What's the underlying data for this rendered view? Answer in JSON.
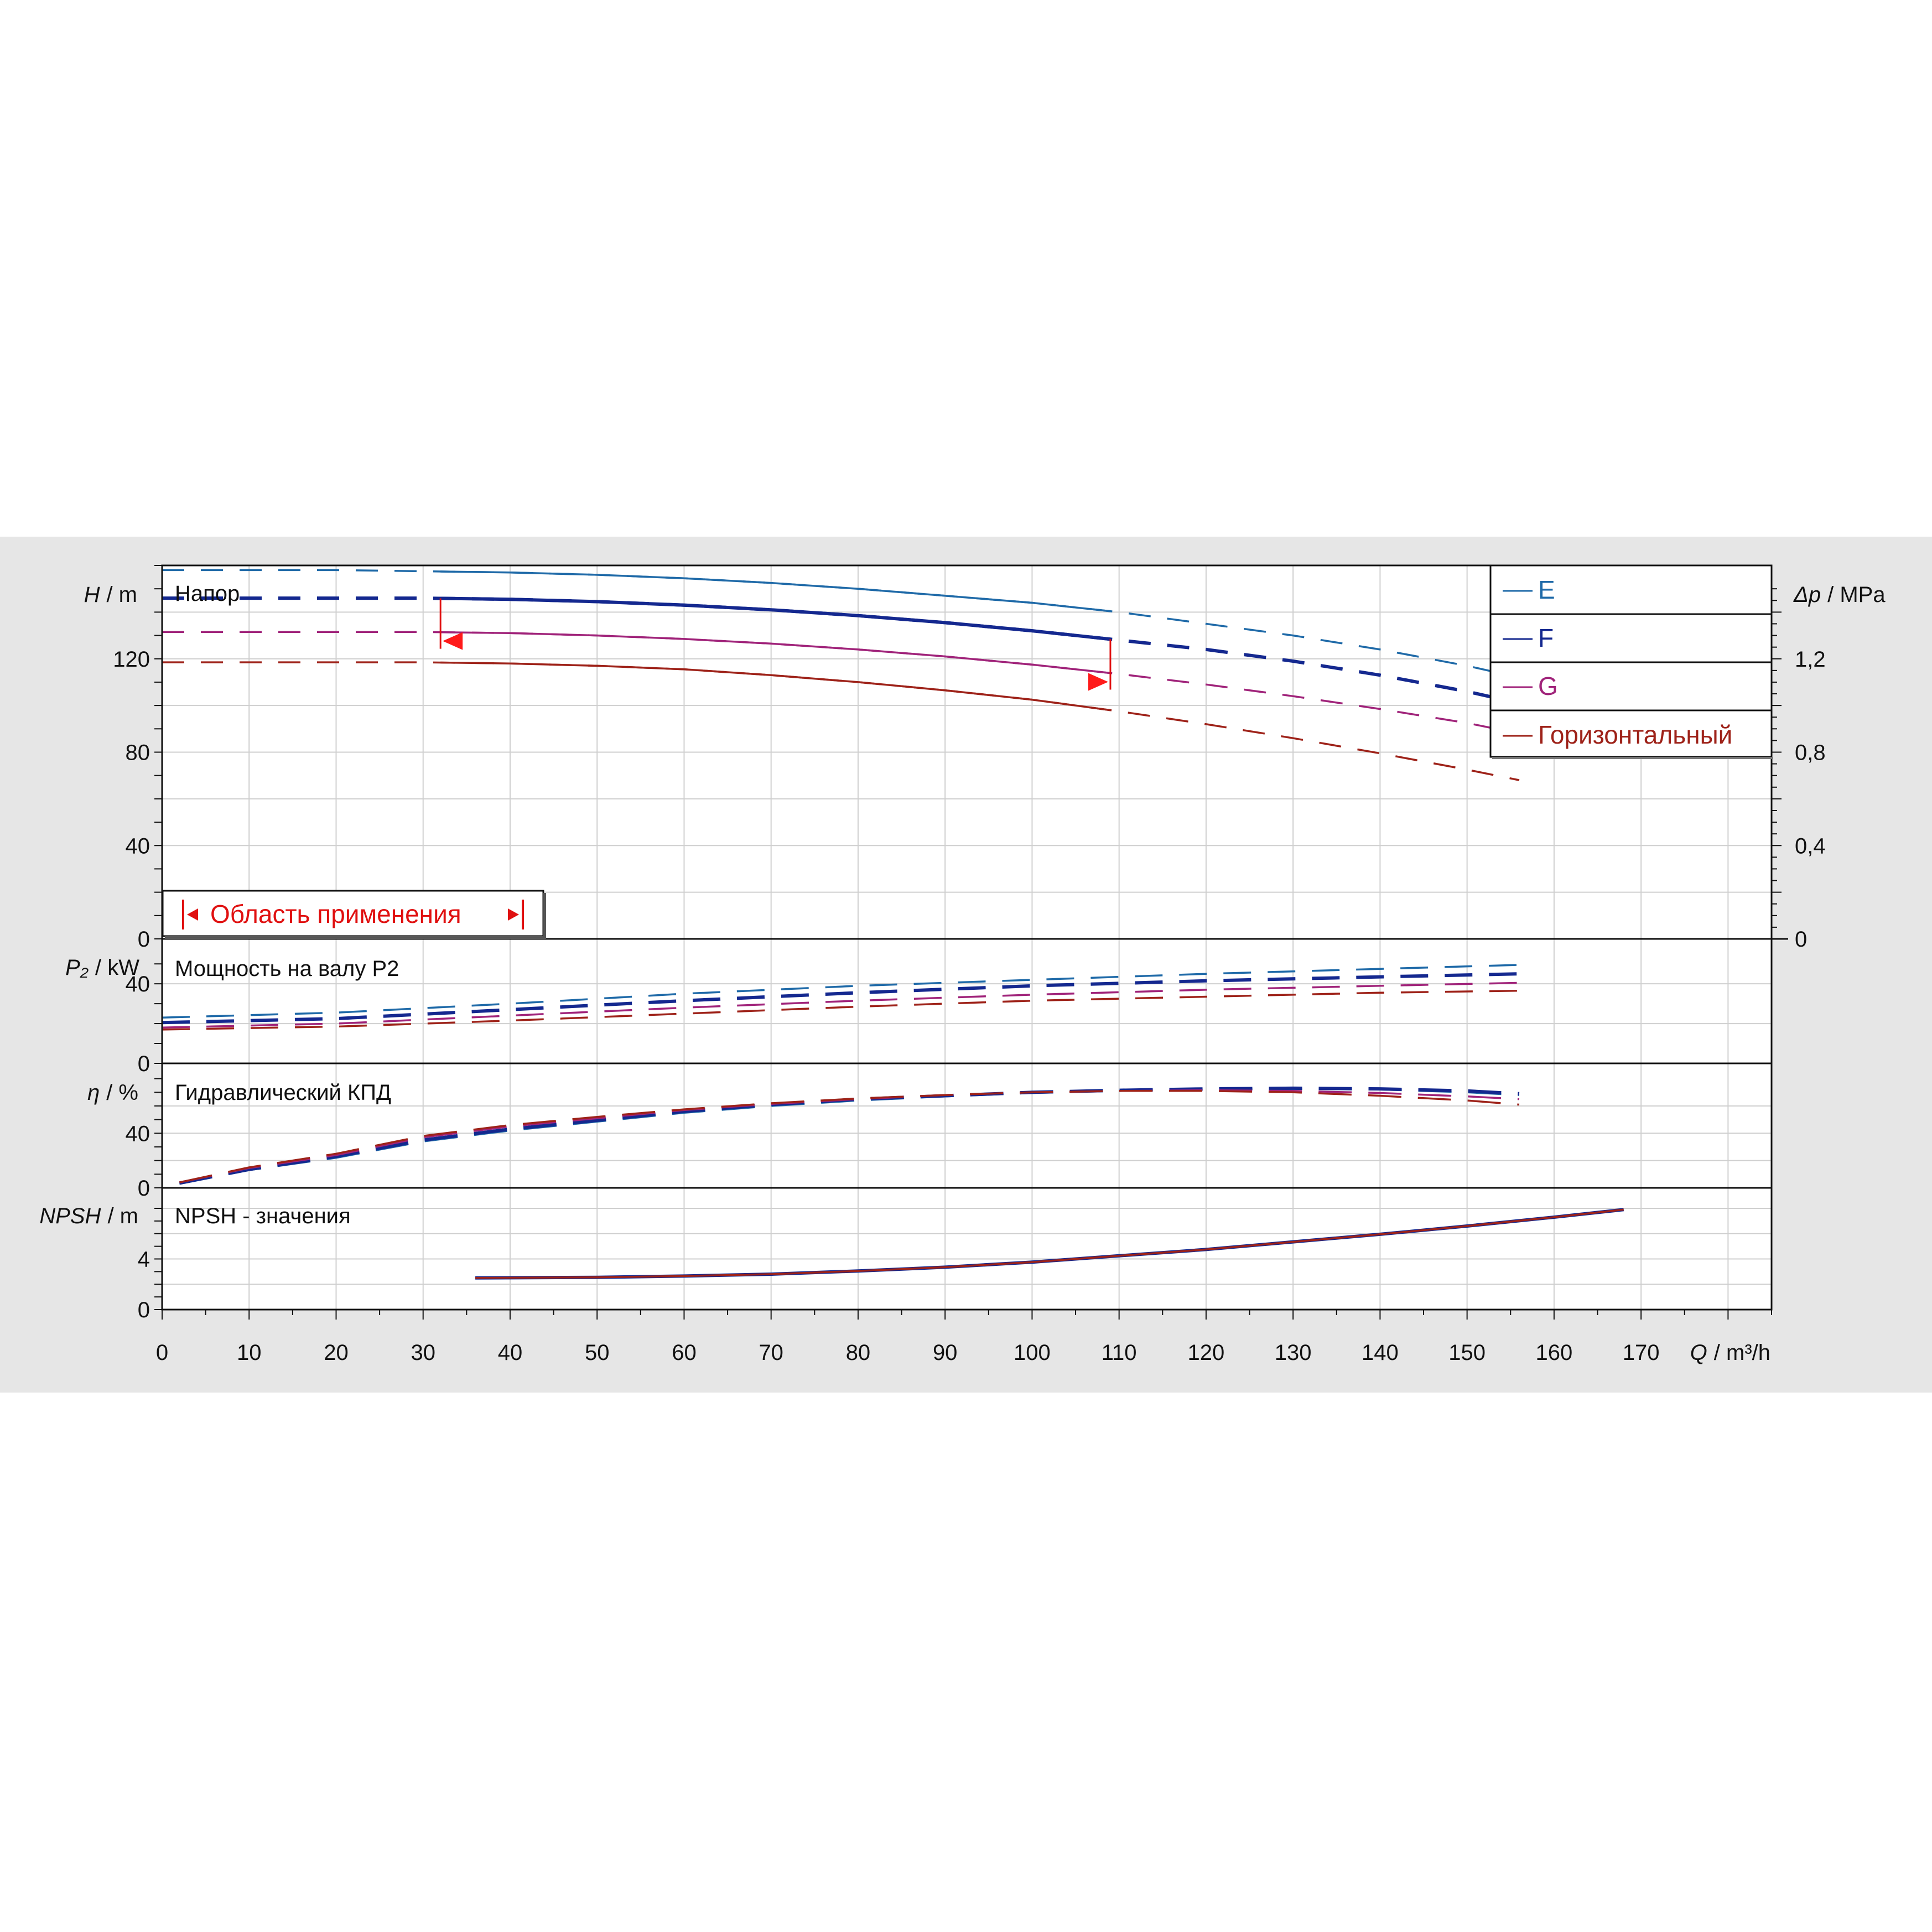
{
  "chart_data": {
    "type": "line",
    "x_axis": {
      "label_symbol": "Q",
      "label_unit": "/ m³/h",
      "range": [
        0,
        185
      ],
      "ticks": [
        "0",
        "10",
        "20",
        "30",
        "40",
        "50",
        "60",
        "70",
        "80",
        "90",
        "100",
        "110",
        "120",
        "130",
        "140",
        "150",
        "160",
        "170"
      ]
    },
    "legend": {
      "placement": "top-right",
      "entries": [
        {
          "name": "E",
          "color": "#1f6aa8"
        },
        {
          "name": "F",
          "color": "#14288f"
        },
        {
          "name": "G",
          "color": "#a0237a"
        },
        {
          "name": "Горизонтальный",
          "color": "#9e2219"
        }
      ]
    },
    "panels": [
      {
        "id": "head",
        "title": "Напор",
        "y_symbol": "H",
        "y_unit": "/ m",
        "y_range": [
          0,
          160
        ],
        "y_ticks": [
          "0",
          "40",
          "80",
          "120"
        ],
        "y2_symbol": "Δp",
        "y2_unit": "/ MPa",
        "y2_ticks": [
          "0",
          "0,4",
          "0,8",
          "1,2"
        ],
        "series": [
          {
            "name": "E",
            "x": [
              0,
              10,
              20,
              30,
              40,
              50,
              60,
              70,
              80,
              90,
              100,
              110,
              120,
              130,
              140,
              150,
              156
            ],
            "y": [
              158,
              158,
              158,
              157.5,
              157,
              156,
              154.5,
              152.5,
              150,
              147,
              144,
              140,
              135,
              130,
              124,
              117,
              112
            ]
          },
          {
            "name": "F",
            "x": [
              0,
              10,
              20,
              30,
              40,
              50,
              60,
              70,
              80,
              90,
              100,
              110,
              120,
              130,
              140,
              150,
              156
            ],
            "y": [
              146,
              146,
              146,
              146,
              145.5,
              144.5,
              143,
              141,
              138.5,
              135.5,
              132,
              128,
              124,
              119,
              113,
              106,
              101
            ]
          },
          {
            "name": "G",
            "x": [
              0,
              10,
              20,
              30,
              40,
              50,
              60,
              70,
              80,
              90,
              100,
              110,
              120,
              130,
              140,
              150,
              156
            ],
            "y": [
              131.5,
              131.5,
              131.5,
              131.5,
              131,
              130,
              128.5,
              126.5,
              124,
              121,
              117.5,
              113.5,
              109,
              104,
              98.5,
              92.5,
              88
            ]
          },
          {
            "name": "Горизонтальный",
            "x": [
              0,
              10,
              20,
              30,
              40,
              50,
              60,
              70,
              80,
              90,
              100,
              110,
              120,
              130,
              140,
              150,
              156
            ],
            "y": [
              118.5,
              118.5,
              118.5,
              118.5,
              118,
              117,
              115.5,
              113,
              110,
              106.5,
              102.5,
              97.5,
              92,
              86,
              79.5,
              72.5,
              68
            ]
          }
        ],
        "operating_range": {
          "label": "Область применения",
          "q_min": 32,
          "q_max": 109
        }
      },
      {
        "id": "power",
        "title": "Мощность на валу P2",
        "y_symbol": "P₂",
        "y_unit": "/ kW",
        "y_range": [
          0,
          58
        ],
        "y_ticks": [
          "0",
          "40"
        ],
        "series": [
          {
            "name": "E",
            "x": [
              0,
              20,
              40,
              60,
              80,
              100,
              120,
              140,
              156
            ],
            "y": [
              23,
              25.5,
              30,
              35,
              39,
              42,
              45,
              47.5,
              49.5
            ]
          },
          {
            "name": "F",
            "x": [
              0,
              20,
              40,
              60,
              80,
              100,
              120,
              140,
              156
            ],
            "y": [
              20.5,
              22.5,
              27,
              31.5,
              35.5,
              39,
              41.5,
              43.5,
              45
            ]
          },
          {
            "name": "G",
            "x": [
              0,
              20,
              40,
              60,
              80,
              100,
              120,
              140,
              156
            ],
            "y": [
              18,
              20,
              24,
              28,
              31.5,
              34.5,
              37,
              39,
              40.5
            ]
          },
          {
            "name": "Горизонтальный",
            "x": [
              0,
              20,
              40,
              60,
              80,
              100,
              120,
              140,
              156
            ],
            "y": [
              17,
              18.5,
              21.5,
              25,
              28.5,
              31.5,
              33.5,
              35.5,
              36.5
            ]
          }
        ]
      },
      {
        "id": "efficiency",
        "title": "Гидравлический КПД",
        "y_symbol": "η",
        "y_unit": "/ %",
        "y_range": [
          0,
          80
        ],
        "y_ticks": [
          "0",
          "40"
        ],
        "series": [
          {
            "name": "E",
            "x": [
              2,
              10,
              20,
              30,
              40,
              50,
              60,
              70,
              80,
              90,
              100,
              110,
              120,
              130,
              140,
              150,
              156
            ],
            "y": [
              3,
              13,
              22,
              34,
              42,
              48.5,
              55,
              60,
              64,
              67,
              69.5,
              71,
              72,
              72.5,
              72,
              70,
              68
            ]
          },
          {
            "name": "F",
            "x": [
              2,
              10,
              20,
              30,
              40,
              50,
              60,
              70,
              80,
              90,
              100,
              110,
              120,
              130,
              140,
              150,
              156
            ],
            "y": [
              3.5,
              13.5,
              23,
              35,
              43,
              49.5,
              56,
              61,
              65,
              67.5,
              70,
              71.5,
              72.5,
              73,
              72.5,
              71,
              69
            ]
          },
          {
            "name": "G",
            "x": [
              2,
              10,
              20,
              30,
              40,
              50,
              60,
              70,
              80,
              90,
              100,
              110,
              120,
              130,
              140,
              150,
              156
            ],
            "y": [
              4,
              14.5,
              24,
              37,
              45,
              51,
              57,
              61.5,
              65,
              68,
              70,
              71,
              71.5,
              71,
              69.5,
              67,
              65
            ]
          },
          {
            "name": "Горизонтальный",
            "x": [
              2,
              10,
              20,
              30,
              40,
              50,
              60,
              70,
              80,
              90,
              100,
              110,
              120,
              130,
              140,
              150,
              156
            ],
            "y": [
              4,
              15,
              25,
              38,
              46,
              52,
              57.5,
              62,
              65.5,
              68,
              70,
              71,
              71,
              70,
              67.5,
              64,
              61
            ]
          }
        ]
      },
      {
        "id": "npsh",
        "title": "NPSH - значения",
        "y_symbol": "NPSH",
        "y_unit": "/ m",
        "y_range": [
          0,
          8
        ],
        "y_ticks": [
          "0",
          "4"
        ],
        "series": [
          {
            "name": "F",
            "x": [
              36,
              50,
              60,
              70,
              80,
              90,
              100,
              110,
              120,
              130,
              140,
              150,
              160,
              168
            ],
            "y": [
              2.5,
              2.55,
              2.65,
              2.8,
              3.05,
              3.35,
              3.75,
              4.25,
              4.75,
              5.35,
              5.95,
              6.6,
              7.3,
              7.9
            ]
          },
          {
            "name": "Горизонтальный",
            "x": [
              36,
              50,
              60,
              70,
              80,
              90,
              100,
              110,
              120,
              130,
              140,
              150,
              160,
              168
            ],
            "y": [
              2.5,
              2.55,
              2.65,
              2.8,
              3.05,
              3.35,
              3.75,
              4.25,
              4.75,
              5.35,
              5.95,
              6.6,
              7.3,
              7.9
            ]
          }
        ]
      }
    ]
  }
}
